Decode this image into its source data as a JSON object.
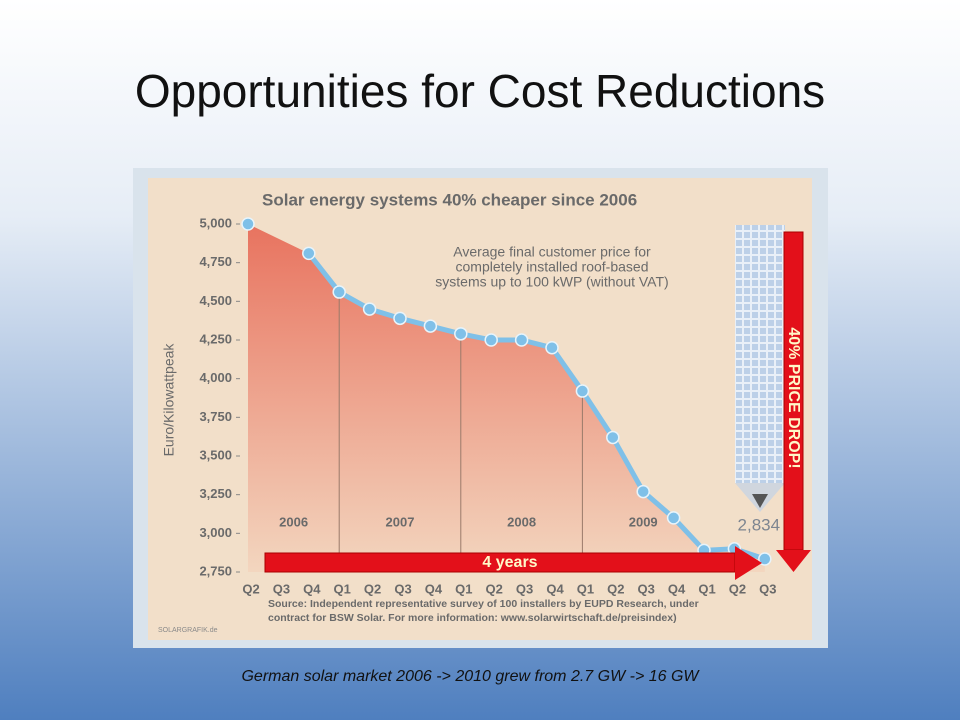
{
  "slide_title": "Opportunities for Cost Reductions",
  "caption": "German solar market 2006 -> 2010 grew from 2.7 GW -> 16 GW",
  "chart_data": {
    "type": "line",
    "title": "Solar energy systems 40% cheaper since 2006",
    "subtitle": [
      "Average final customer price for",
      "completely installed roof-based",
      "systems up to 100 kWP (without VAT)"
    ],
    "y_label": "Euro/Kilowattpeak",
    "categories": [
      "Q2",
      "Q3",
      "Q4",
      "Q1",
      "Q2",
      "Q3",
      "Q4",
      "Q1",
      "Q2",
      "Q3",
      "Q4",
      "Q1",
      "Q2",
      "Q3",
      "Q4",
      "Q1",
      "Q2",
      "Q3"
    ],
    "year_labels": [
      "2006",
      "2007",
      "2008",
      "2009"
    ],
    "values": [
      5000,
      null,
      4810,
      4560,
      4450,
      4390,
      4340,
      4290,
      4250,
      4250,
      4200,
      3920,
      3620,
      3270,
      3100,
      2890,
      2900,
      2834
    ],
    "value_labels": [
      null,
      null,
      null,
      null,
      null,
      null,
      null,
      null,
      null,
      null,
      null,
      null,
      null,
      null,
      null,
      null,
      null,
      "2,834"
    ],
    "color": "#7fc0e8",
    "fill_color": "#e8735f",
    "ylim": [
      2750,
      5000
    ],
    "yticks": [
      {
        "value": 2750,
        "label": "2,750"
      },
      {
        "value": 3000,
        "label": "3,000"
      },
      {
        "value": 3250,
        "label": "3,250"
      },
      {
        "value": 3500,
        "label": "3,500"
      },
      {
        "value": 3750,
        "label": "3,750"
      },
      {
        "value": 4000,
        "label": "4,000"
      },
      {
        "value": 4250,
        "label": "4,250"
      },
      {
        "value": 4500,
        "label": "4,500"
      },
      {
        "value": 4750,
        "label": "4,750"
      },
      {
        "value": 5000,
        "label": "5,000"
      }
    ],
    "annotations": [
      "4 years",
      "40% PRICE DROP!"
    ],
    "source": [
      "Source: Independent representative survey of 100 installers by EUPD Research, under",
      "contract for BSW Solar. For more information: www.solarwirtschaft.de/preisindex)"
    ],
    "credit": "SOLARGRAFIK.de"
  }
}
